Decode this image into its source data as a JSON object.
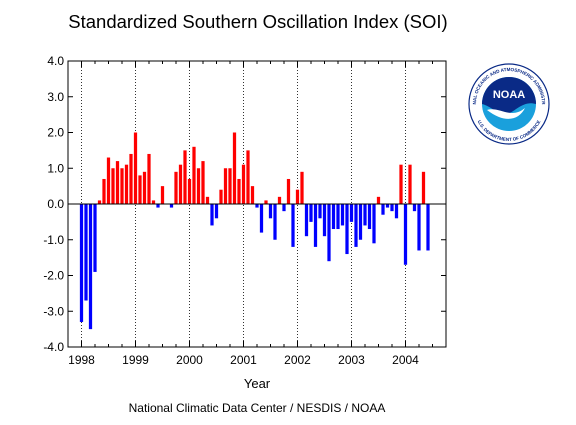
{
  "chart_data": {
    "type": "bar",
    "title": "Standardized Southern Oscillation Index (SOI)",
    "xlabel": "Year",
    "ylabel": "",
    "credit": "National Climatic Data Center / NESDIS / NOAA",
    "xlim": [
      1997.75,
      2004.75
    ],
    "ylim": [
      -4.0,
      4.0
    ],
    "x_ticks": [
      {
        "value": 1998,
        "label": "1998"
      },
      {
        "value": 1999,
        "label": "1999"
      },
      {
        "value": 2000,
        "label": "2000"
      },
      {
        "value": 2001,
        "label": "2001"
      },
      {
        "value": 2002,
        "label": "2002"
      },
      {
        "value": 2003,
        "label": "2003"
      },
      {
        "value": 2004,
        "label": "2004"
      }
    ],
    "y_ticks": [
      {
        "value": 4,
        "label": "4.0"
      },
      {
        "value": 3,
        "label": "3.0"
      },
      {
        "value": 2,
        "label": "2.0"
      },
      {
        "value": 1,
        "label": "1.0"
      },
      {
        "value": 0,
        "label": "0.0"
      },
      {
        "value": -1,
        "label": "-1.0"
      },
      {
        "value": -2,
        "label": "-2.0"
      },
      {
        "value": -3,
        "label": "-3.0"
      },
      {
        "value": -4,
        "label": "-4.0"
      }
    ],
    "positive_color": "#ff0000",
    "negative_color": "#0000ff",
    "grid": "vertical dotted lines at years",
    "series": [
      {
        "x": "1998-01",
        "value": -3.3
      },
      {
        "x": "1998-02",
        "value": -2.7
      },
      {
        "x": "1998-03",
        "value": -3.5
      },
      {
        "x": "1998-04",
        "value": -1.9
      },
      {
        "x": "1998-05",
        "value": 0.1
      },
      {
        "x": "1998-06",
        "value": 0.7
      },
      {
        "x": "1998-07",
        "value": 1.3
      },
      {
        "x": "1998-08",
        "value": 1.0
      },
      {
        "x": "1998-09",
        "value": 1.2
      },
      {
        "x": "1998-10",
        "value": 1.0
      },
      {
        "x": "1998-11",
        "value": 1.1
      },
      {
        "x": "1998-12",
        "value": 1.4
      },
      {
        "x": "1999-01",
        "value": 2.0
      },
      {
        "x": "1999-02",
        "value": 0.8
      },
      {
        "x": "1999-03",
        "value": 0.9
      },
      {
        "x": "1999-04",
        "value": 1.4
      },
      {
        "x": "1999-05",
        "value": 0.1
      },
      {
        "x": "1999-06",
        "value": -0.1
      },
      {
        "x": "1999-07",
        "value": 0.5
      },
      {
        "x": "1999-08",
        "value": 0.0
      },
      {
        "x": "1999-09",
        "value": -0.1
      },
      {
        "x": "1999-10",
        "value": 0.9
      },
      {
        "x": "1999-11",
        "value": 1.1
      },
      {
        "x": "1999-12",
        "value": 1.5
      },
      {
        "x": "2000-01",
        "value": 0.7
      },
      {
        "x": "2000-02",
        "value": 1.6
      },
      {
        "x": "2000-03",
        "value": 1.0
      },
      {
        "x": "2000-04",
        "value": 1.2
      },
      {
        "x": "2000-05",
        "value": 0.2
      },
      {
        "x": "2000-06",
        "value": -0.6
      },
      {
        "x": "2000-07",
        "value": -0.4
      },
      {
        "x": "2000-08",
        "value": 0.4
      },
      {
        "x": "2000-09",
        "value": 1.0
      },
      {
        "x": "2000-10",
        "value": 1.0
      },
      {
        "x": "2000-11",
        "value": 2.0
      },
      {
        "x": "2000-12",
        "value": 0.7
      },
      {
        "x": "2001-01",
        "value": 1.1
      },
      {
        "x": "2001-02",
        "value": 1.5
      },
      {
        "x": "2001-03",
        "value": 0.5
      },
      {
        "x": "2001-04",
        "value": -0.1
      },
      {
        "x": "2001-05",
        "value": -0.8
      },
      {
        "x": "2001-06",
        "value": 0.1
      },
      {
        "x": "2001-07",
        "value": -0.4
      },
      {
        "x": "2001-08",
        "value": -1.0
      },
      {
        "x": "2001-09",
        "value": 0.2
      },
      {
        "x": "2001-10",
        "value": -0.2
      },
      {
        "x": "2001-11",
        "value": 0.7
      },
      {
        "x": "2001-12",
        "value": -1.2
      },
      {
        "x": "2002-01",
        "value": 0.4
      },
      {
        "x": "2002-02",
        "value": 0.9
      },
      {
        "x": "2002-03",
        "value": -0.9
      },
      {
        "x": "2002-04",
        "value": -0.5
      },
      {
        "x": "2002-05",
        "value": -1.2
      },
      {
        "x": "2002-06",
        "value": -0.4
      },
      {
        "x": "2002-07",
        "value": -0.9
      },
      {
        "x": "2002-08",
        "value": -1.6
      },
      {
        "x": "2002-09",
        "value": -0.7
      },
      {
        "x": "2002-10",
        "value": -0.7
      },
      {
        "x": "2002-11",
        "value": -0.6
      },
      {
        "x": "2002-12",
        "value": -1.4
      },
      {
        "x": "2003-01",
        "value": -0.5
      },
      {
        "x": "2003-02",
        "value": -1.2
      },
      {
        "x": "2003-03",
        "value": -1.0
      },
      {
        "x": "2003-04",
        "value": -0.6
      },
      {
        "x": "2003-05",
        "value": -0.7
      },
      {
        "x": "2003-06",
        "value": -1.1
      },
      {
        "x": "2003-07",
        "value": 0.2
      },
      {
        "x": "2003-08",
        "value": -0.3
      },
      {
        "x": "2003-09",
        "value": -0.1
      },
      {
        "x": "2003-10",
        "value": -0.2
      },
      {
        "x": "2003-11",
        "value": -0.4
      },
      {
        "x": "2003-12",
        "value": 1.1
      },
      {
        "x": "2004-01",
        "value": -1.7
      },
      {
        "x": "2004-02",
        "value": 1.1
      },
      {
        "x": "2004-03",
        "value": -0.2
      },
      {
        "x": "2004-04",
        "value": -1.3
      },
      {
        "x": "2004-05",
        "value": 0.9
      },
      {
        "x": "2004-06",
        "value": -1.3
      }
    ]
  },
  "logo": {
    "name": "NOAA",
    "ring_text": "NATIONAL OCEANIC AND ATMOSPHERIC ADMINISTRATION",
    "ring_text_bottom": "U.S. DEPARTMENT OF COMMERCE",
    "dark_color": "#0a2a86",
    "light_color": "#1aa0dc"
  }
}
